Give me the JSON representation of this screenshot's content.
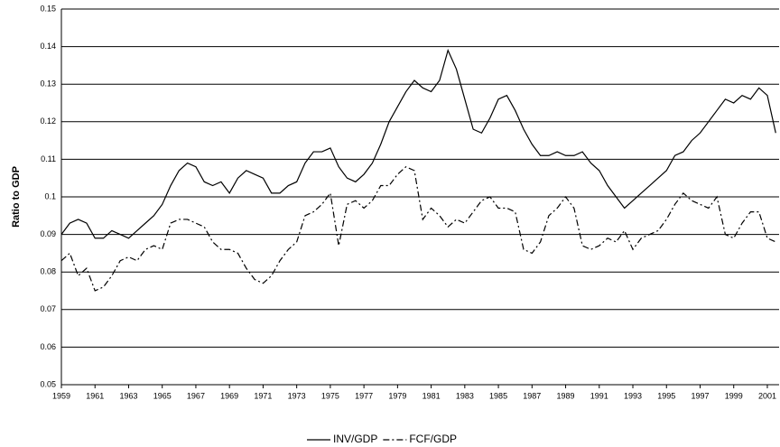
{
  "chart_data": {
    "type": "line",
    "y_label": "Ratio to GDP",
    "x": [
      1959,
      1959.5,
      1960,
      1960.5,
      1961,
      1961.5,
      1962,
      1962.5,
      1963,
      1963.5,
      1964,
      1964.5,
      1965,
      1965.5,
      1966,
      1966.5,
      1967,
      1967.5,
      1968,
      1968.5,
      1969,
      1969.5,
      1970,
      1970.5,
      1971,
      1971.5,
      1972,
      1972.5,
      1973,
      1973.5,
      1974,
      1974.5,
      1975,
      1975.5,
      1976,
      1976.5,
      1977,
      1977.5,
      1978,
      1978.5,
      1979,
      1979.5,
      1980,
      1980.5,
      1981,
      1981.5,
      1982,
      1982.5,
      1983,
      1983.5,
      1984,
      1984.5,
      1985,
      1985.5,
      1986,
      1986.5,
      1987,
      1987.5,
      1988,
      1988.5,
      1989,
      1989.5,
      1990,
      1990.5,
      1991,
      1991.5,
      1992,
      1992.5,
      1993,
      1993.5,
      1994,
      1994.5,
      1995,
      1995.5,
      1996,
      1996.5,
      1997,
      1997.5,
      1998,
      1998.5,
      1999,
      1999.5,
      2000,
      2000.5,
      2001,
      2001.5
    ],
    "series": [
      {
        "name": "INV/GDP",
        "color": "#000000",
        "dash": "solid",
        "values": [
          0.09,
          0.093,
          0.094,
          0.093,
          0.089,
          0.089,
          0.091,
          0.09,
          0.089,
          0.091,
          0.093,
          0.095,
          0.098,
          0.103,
          0.107,
          0.109,
          0.108,
          0.104,
          0.103,
          0.104,
          0.101,
          0.105,
          0.107,
          0.106,
          0.105,
          0.101,
          0.101,
          0.103,
          0.104,
          0.109,
          0.112,
          0.112,
          0.113,
          0.108,
          0.105,
          0.104,
          0.106,
          0.109,
          0.114,
          0.12,
          0.124,
          0.128,
          0.131,
          0.129,
          0.128,
          0.131,
          0.139,
          0.134,
          0.126,
          0.118,
          0.117,
          0.121,
          0.126,
          0.127,
          0.123,
          0.118,
          0.114,
          0.111,
          0.111,
          0.112,
          0.111,
          0.111,
          0.112,
          0.109,
          0.107,
          0.103,
          0.1,
          0.097,
          0.099,
          0.101,
          0.103,
          0.105,
          0.107,
          0.111,
          0.112,
          0.115,
          0.117,
          0.12,
          0.123,
          0.126,
          0.125,
          0.127,
          0.126,
          0.129,
          0.127,
          0.117
        ]
      },
      {
        "name": "FCF/GDP",
        "color": "#000000",
        "dash": "dashdot",
        "values": [
          0.083,
          0.085,
          0.079,
          0.081,
          0.075,
          0.076,
          0.079,
          0.083,
          0.084,
          0.083,
          0.086,
          0.087,
          0.086,
          0.093,
          0.094,
          0.094,
          0.093,
          0.092,
          0.088,
          0.086,
          0.086,
          0.085,
          0.081,
          0.078,
          0.077,
          0.079,
          0.083,
          0.086,
          0.088,
          0.095,
          0.096,
          0.098,
          0.101,
          0.087,
          0.098,
          0.099,
          0.097,
          0.099,
          0.103,
          0.103,
          0.106,
          0.108,
          0.107,
          0.094,
          0.097,
          0.095,
          0.092,
          0.094,
          0.093,
          0.096,
          0.099,
          0.1,
          0.097,
          0.097,
          0.096,
          0.086,
          0.085,
          0.088,
          0.095,
          0.097,
          0.1,
          0.097,
          0.087,
          0.086,
          0.087,
          0.089,
          0.088,
          0.091,
          0.086,
          0.089,
          0.09,
          0.091,
          0.094,
          0.098,
          0.101,
          0.099,
          0.098,
          0.097,
          0.1,
          0.09,
          0.089,
          0.093,
          0.096,
          0.096,
          0.089,
          0.088
        ]
      }
    ],
    "xlim": [
      1959,
      2001.7
    ],
    "xticks": [
      1959,
      1961,
      1963,
      1965,
      1967,
      1969,
      1971,
      1973,
      1975,
      1977,
      1979,
      1981,
      1983,
      1985,
      1987,
      1989,
      1991,
      1993,
      1995,
      1997,
      1999,
      2001
    ],
    "ylim": [
      0.05,
      0.15
    ],
    "yticks": [
      0.05,
      0.06,
      0.07,
      0.08,
      0.09,
      0.1,
      0.11,
      0.12,
      0.13,
      0.14,
      0.15
    ],
    "grid": true,
    "legend": "bottom"
  }
}
